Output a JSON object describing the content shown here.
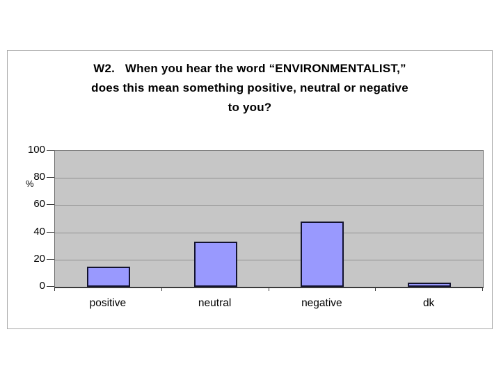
{
  "slide": {
    "title": "W2.   When you hear the word “ENVIRONMENTALIST,”\ndoes this mean something positive, neutral or negative\nto you?"
  },
  "chart_data": {
    "type": "bar",
    "title": "W2. When you hear the word “ENVIRONMENTALIST,” does this mean something positive, neutral or negative to you?",
    "categories": [
      "positive",
      "neutral",
      "negative",
      "dk"
    ],
    "values": [
      15,
      33,
      48,
      3
    ],
    "xlabel": "",
    "ylabel": "%",
    "ylim": [
      0,
      100
    ],
    "yticks": [
      0,
      20,
      40,
      60,
      80,
      100
    ],
    "grid": true,
    "legend": "none",
    "colors": {
      "bar_fill": "#9999fe",
      "bar_border": "#13132e",
      "plot_bg": "#c6c6c6",
      "gridline": "#8f8f8f",
      "axis": "#3a3a3a",
      "frame_border": "#a8a8a8"
    }
  }
}
